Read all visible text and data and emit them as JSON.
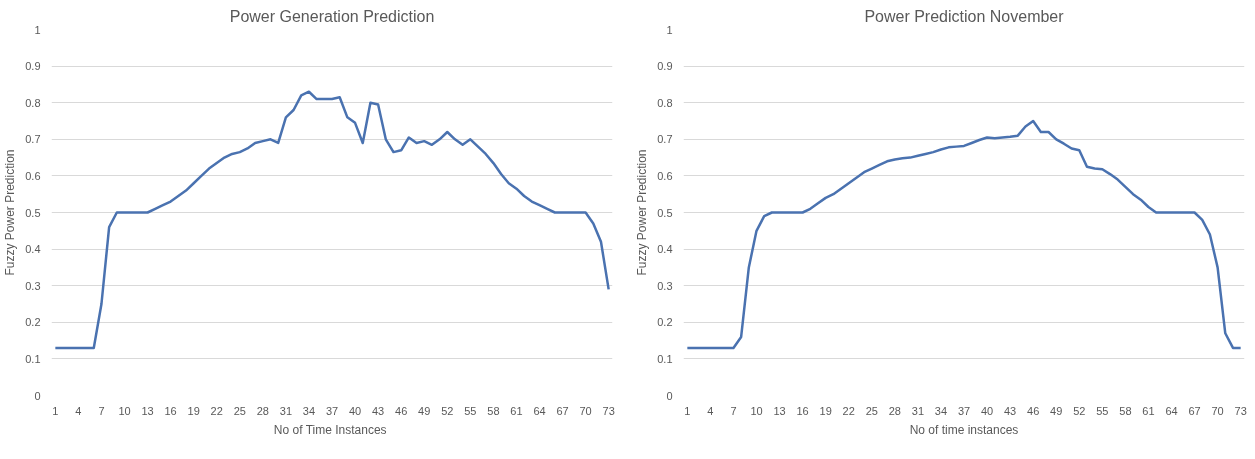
{
  "chart_data": [
    {
      "type": "line",
      "title": "Power Generation Prediction",
      "xlabel": "No of  Time Instances",
      "ylabel": "Fuzzy Power Prediction",
      "x": [
        1,
        2,
        3,
        4,
        5,
        6,
        7,
        8,
        9,
        10,
        11,
        12,
        13,
        14,
        15,
        16,
        17,
        18,
        19,
        20,
        21,
        22,
        23,
        24,
        25,
        26,
        27,
        28,
        29,
        30,
        31,
        32,
        33,
        34,
        35,
        36,
        37,
        38,
        39,
        40,
        41,
        42,
        43,
        44,
        45,
        46,
        47,
        48,
        49,
        50,
        51,
        52,
        53,
        54,
        55,
        56,
        57,
        58,
        59,
        60,
        61,
        62,
        63,
        64,
        65,
        66,
        67,
        68,
        69,
        70,
        71,
        72,
        73
      ],
      "series": [
        {
          "color": "#4a72b0",
          "values": [
            0.13,
            0.13,
            0.13,
            0.13,
            0.13,
            0.13,
            0.25,
            0.46,
            0.5,
            0.5,
            0.5,
            0.5,
            0.5,
            0.51,
            0.52,
            0.53,
            0.545,
            0.56,
            0.58,
            0.6,
            0.62,
            0.635,
            0.65,
            0.66,
            0.665,
            0.675,
            0.69,
            0.695,
            0.7,
            0.69,
            0.76,
            0.78,
            0.82,
            0.83,
            0.81,
            0.81,
            0.81,
            0.815,
            0.76,
            0.745,
            0.69,
            0.8,
            0.795,
            0.7,
            0.665,
            0.67,
            0.705,
            0.69,
            0.695,
            0.685,
            0.7,
            0.72,
            0.7,
            0.685,
            0.7,
            0.68,
            0.66,
            0.635,
            0.605,
            0.58,
            0.565,
            0.545,
            0.53,
            0.52,
            0.51,
            0.5,
            0.5,
            0.5,
            0.5,
            0.5,
            0.47,
            0.42,
            0.29
          ]
        }
      ],
      "xlim": [
        0.5,
        73.5
      ],
      "xticks": [
        1,
        4,
        7,
        10,
        13,
        16,
        19,
        22,
        25,
        28,
        31,
        34,
        37,
        40,
        43,
        46,
        49,
        52,
        55,
        58,
        61,
        64,
        67,
        70,
        73
      ],
      "ylim": [
        0,
        1
      ],
      "yticks": [
        0,
        0.1,
        0.2,
        0.3,
        0.4,
        0.5,
        0.6,
        0.7,
        0.8,
        0.9,
        1
      ],
      "grid": "y",
      "marker": "none",
      "line_style": "solid"
    },
    {
      "type": "line",
      "title": "Power Prediction November",
      "xlabel": "No of time instances",
      "ylabel": "Fuzzy Power Prediction",
      "x": [
        1,
        2,
        3,
        4,
        5,
        6,
        7,
        8,
        9,
        10,
        11,
        12,
        13,
        14,
        15,
        16,
        17,
        18,
        19,
        20,
        21,
        22,
        23,
        24,
        25,
        26,
        27,
        28,
        29,
        30,
        31,
        32,
        33,
        34,
        35,
        36,
        37,
        38,
        39,
        40,
        41,
        42,
        43,
        44,
        45,
        46,
        47,
        48,
        49,
        50,
        51,
        52,
        53,
        54,
        55,
        56,
        57,
        58,
        59,
        60,
        61,
        62,
        63,
        64,
        65,
        66,
        67,
        68,
        69,
        70,
        71,
        72,
        73
      ],
      "series": [
        {
          "color": "#4a72b0",
          "values": [
            0.13,
            0.13,
            0.13,
            0.13,
            0.13,
            0.13,
            0.13,
            0.16,
            0.35,
            0.45,
            0.49,
            0.5,
            0.5,
            0.5,
            0.5,
            0.5,
            0.51,
            0.525,
            0.54,
            0.55,
            0.565,
            0.58,
            0.595,
            0.61,
            0.62,
            0.63,
            0.64,
            0.645,
            0.648,
            0.65,
            0.655,
            0.66,
            0.665,
            0.672,
            0.678,
            0.68,
            0.682,
            0.69,
            0.698,
            0.705,
            0.703,
            0.705,
            0.707,
            0.71,
            0.735,
            0.75,
            0.72,
            0.72,
            0.7,
            0.688,
            0.675,
            0.67,
            0.625,
            0.62,
            0.618,
            0.605,
            0.59,
            0.57,
            0.55,
            0.535,
            0.515,
            0.5,
            0.5,
            0.5,
            0.5,
            0.5,
            0.5,
            0.48,
            0.44,
            0.35,
            0.17,
            0.13,
            0.13
          ]
        }
      ],
      "xlim": [
        0.5,
        73.5
      ],
      "xticks": [
        1,
        4,
        7,
        10,
        13,
        16,
        19,
        22,
        25,
        28,
        31,
        34,
        37,
        40,
        43,
        46,
        49,
        52,
        55,
        58,
        61,
        64,
        67,
        70,
        73
      ],
      "ylim": [
        0,
        1
      ],
      "yticks": [
        0,
        0.1,
        0.2,
        0.3,
        0.4,
        0.5,
        0.6,
        0.7,
        0.8,
        0.9,
        1
      ],
      "grid": "y",
      "marker": "none",
      "line_style": "solid"
    }
  ]
}
